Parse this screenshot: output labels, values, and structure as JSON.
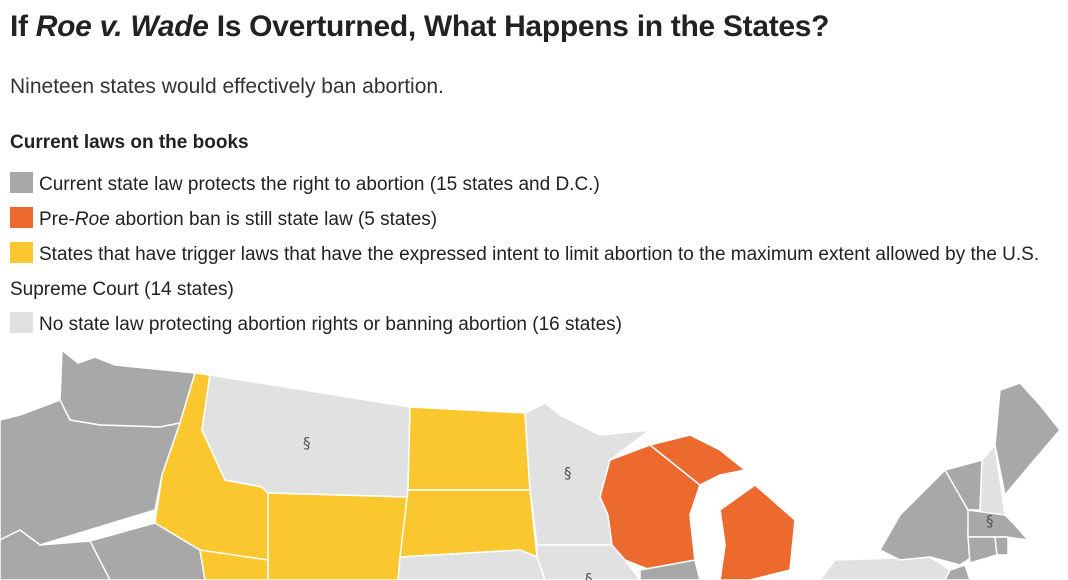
{
  "title": {
    "prefix": "If ",
    "case_name": "Roe v. Wade",
    "suffix": " Is Overturned, What Happens in the States?"
  },
  "subtitle": "Nineteen states would effectively ban abortion.",
  "legend": {
    "heading": "Current laws on the books",
    "items": [
      {
        "color": "#a8a8a8",
        "text": "Current state law protects the right to abortion (15 states and D.C.)"
      },
      {
        "color": "#ec6a2e",
        "text_before": "Pre-",
        "text_italic": "Roe",
        "text_after": " abortion ban is still state law (5 states)"
      },
      {
        "color": "#fac72f",
        "text": "States that have trigger laws that have the expressed intent to limit abortion to the maximum extent allowed by the U.S. Supreme Court (14 states)"
      },
      {
        "color": "#e1e1e1",
        "text": "No state law protecting abortion rights or banning abortion (16 states)"
      }
    ]
  },
  "map": {
    "category_colors": {
      "protects": "#a8a8a8",
      "pre_roe_ban": "#ec6a2e",
      "trigger_law": "#fac72f",
      "no_law": "#e1e1e1",
      "lake": "#ffffff"
    },
    "states": [
      {
        "name": "Washington",
        "category": "protects"
      },
      {
        "name": "Oregon",
        "category": "protects"
      },
      {
        "name": "California",
        "category": "protects"
      },
      {
        "name": "Nevada",
        "category": "protects"
      },
      {
        "name": "Idaho",
        "category": "trigger_law"
      },
      {
        "name": "Utah",
        "category": "trigger_law"
      },
      {
        "name": "Wyoming",
        "category": "trigger_law"
      },
      {
        "name": "North Dakota",
        "category": "trigger_law"
      },
      {
        "name": "South Dakota",
        "category": "trigger_law"
      },
      {
        "name": "Montana",
        "category": "no_law"
      },
      {
        "name": "Minnesota",
        "category": "no_law"
      },
      {
        "name": "Nebraska",
        "category": "no_law"
      },
      {
        "name": "Iowa",
        "category": "no_law"
      },
      {
        "name": "Wisconsin",
        "category": "pre_roe_ban"
      },
      {
        "name": "Michigan",
        "category": "pre_roe_ban"
      },
      {
        "name": "Illinois",
        "category": "protects"
      },
      {
        "name": "New York",
        "category": "protects"
      },
      {
        "name": "Vermont",
        "category": "protects"
      },
      {
        "name": "New Hampshire",
        "category": "no_law"
      },
      {
        "name": "Maine",
        "category": "protects"
      },
      {
        "name": "Massachusetts",
        "category": "protects"
      },
      {
        "name": "Connecticut",
        "category": "protects"
      },
      {
        "name": "Rhode Island",
        "category": "protects"
      },
      {
        "name": "Pennsylvania",
        "category": "no_law"
      },
      {
        "name": "New Jersey",
        "category": "protects"
      }
    ],
    "markers": [
      {
        "state": "Montana",
        "symbol": "§"
      },
      {
        "state": "Minnesota",
        "symbol": "§"
      },
      {
        "state": "Massachusetts",
        "symbol": "§"
      },
      {
        "state": "Iowa",
        "symbol": "§"
      }
    ]
  }
}
